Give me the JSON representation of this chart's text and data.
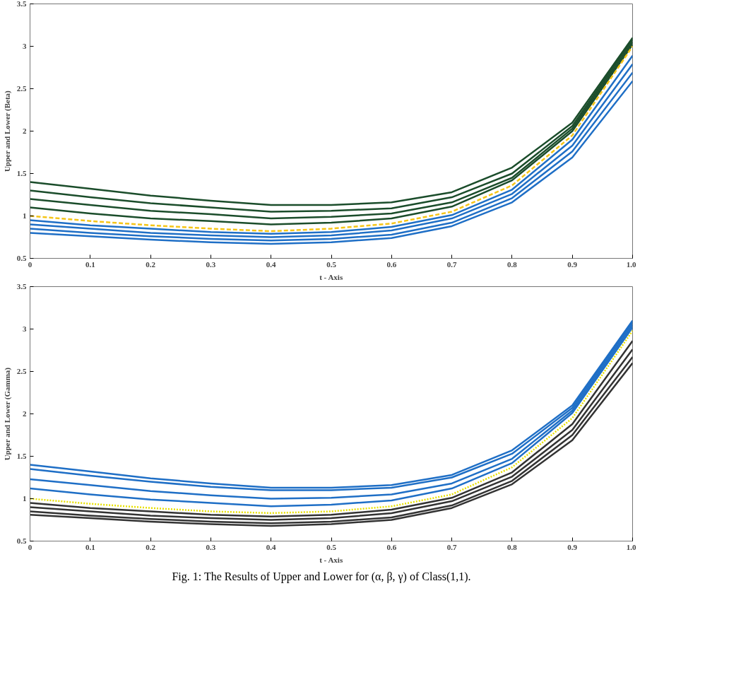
{
  "chart_data": [
    {
      "type": "line",
      "xlabel": "t - Axis",
      "ylabel": "Upper and Lower (Beta)",
      "x": [
        0,
        0.1,
        0.2,
        0.3,
        0.4,
        0.5,
        0.6,
        0.7,
        0.8,
        0.9,
        1.0
      ],
      "xlim": [
        0,
        1.0
      ],
      "ylim": [
        0.5,
        3.5
      ],
      "xticks": [
        0,
        0.1,
        0.2,
        0.3,
        0.4,
        0.5,
        0.6,
        0.7,
        0.8,
        0.9,
        {
          "value": 1.0,
          "label": "1.0"
        }
      ],
      "yticks": [
        0.5,
        1,
        1.5,
        2,
        2.5,
        3,
        3.5
      ],
      "grid": false,
      "series": [
        {
          "color": "#1b4d2b",
          "values": [
            1.4,
            1.32,
            1.24,
            1.18,
            1.13,
            1.13,
            1.16,
            1.28,
            1.57,
            2.1,
            3.1
          ]
        },
        {
          "color": "#1b4d2b",
          "values": [
            1.3,
            1.22,
            1.15,
            1.1,
            1.05,
            1.06,
            1.09,
            1.22,
            1.5,
            2.06,
            3.08
          ]
        },
        {
          "color": "#1b4d2b",
          "values": [
            1.2,
            1.13,
            1.06,
            1.02,
            0.97,
            0.99,
            1.03,
            1.16,
            1.45,
            2.03,
            3.05
          ]
        },
        {
          "color": "#1b4d2b",
          "values": [
            1.1,
            1.03,
            0.97,
            0.94,
            0.9,
            0.92,
            0.97,
            1.11,
            1.42,
            2.0,
            3.02
          ]
        },
        {
          "color": "#f5c518",
          "line_style": "dashed",
          "values": [
            1.0,
            0.94,
            0.89,
            0.85,
            0.82,
            0.85,
            0.91,
            1.05,
            1.36,
            1.95,
            3.0
          ]
        },
        {
          "color": "#1f6fc6",
          "values": [
            0.95,
            0.89,
            0.85,
            0.81,
            0.79,
            0.81,
            0.87,
            1.01,
            1.31,
            1.9,
            2.89
          ]
        },
        {
          "color": "#1f6fc6",
          "values": [
            0.9,
            0.85,
            0.8,
            0.77,
            0.75,
            0.77,
            0.83,
            0.97,
            1.26,
            1.83,
            2.79
          ]
        },
        {
          "color": "#1f6fc6",
          "values": [
            0.85,
            0.8,
            0.76,
            0.73,
            0.71,
            0.73,
            0.78,
            0.92,
            1.21,
            1.76,
            2.69
          ]
        },
        {
          "color": "#1f6fc6",
          "values": [
            0.8,
            0.76,
            0.72,
            0.69,
            0.67,
            0.69,
            0.74,
            0.88,
            1.16,
            1.69,
            2.59
          ]
        }
      ]
    },
    {
      "type": "line",
      "xlabel": "t - Axis",
      "ylabel": "Upper and Lower (Gamma)",
      "x": [
        0,
        0.1,
        0.2,
        0.3,
        0.4,
        0.5,
        0.6,
        0.7,
        0.8,
        0.9,
        1.0
      ],
      "xlim": [
        0,
        1.0
      ],
      "ylim": [
        0.5,
        3.5
      ],
      "xticks": [
        0,
        0.1,
        0.2,
        0.3,
        0.4,
        0.5,
        0.6,
        0.7,
        0.8,
        0.9,
        {
          "value": 1.0,
          "label": "1.0"
        }
      ],
      "yticks": [
        0.5,
        1,
        1.5,
        2,
        2.5,
        3,
        3.5
      ],
      "grid": false,
      "annotations": [
        "Fig. 1: The Results of Upper and Lower for (α, β, γ) of Class(1,1)."
      ],
      "series": [
        {
          "color": "#1f6fc6",
          "values": [
            1.4,
            1.32,
            1.24,
            1.18,
            1.13,
            1.13,
            1.16,
            1.28,
            1.57,
            2.1,
            3.1
          ]
        },
        {
          "color": "#1f6fc6",
          "values": [
            1.35,
            1.27,
            1.2,
            1.14,
            1.1,
            1.1,
            1.13,
            1.25,
            1.53,
            2.07,
            3.08
          ]
        },
        {
          "color": "#1f6fc6",
          "values": [
            1.23,
            1.16,
            1.09,
            1.04,
            1.0,
            1.01,
            1.05,
            1.18,
            1.47,
            2.04,
            3.05
          ]
        },
        {
          "color": "#1f6fc6",
          "values": [
            1.12,
            1.05,
            0.99,
            0.95,
            0.91,
            0.93,
            0.98,
            1.12,
            1.42,
            2.01,
            3.02
          ]
        },
        {
          "color": "#e8e000",
          "line_style": "dotted",
          "values": [
            1.0,
            0.94,
            0.89,
            0.85,
            0.83,
            0.85,
            0.91,
            1.05,
            1.37,
            1.95,
            2.98
          ]
        },
        {
          "color": "#333333",
          "values": [
            0.95,
            0.89,
            0.85,
            0.81,
            0.79,
            0.81,
            0.87,
            1.01,
            1.31,
            1.88,
            2.86
          ]
        },
        {
          "color": "#333333",
          "values": [
            0.9,
            0.85,
            0.8,
            0.77,
            0.75,
            0.77,
            0.83,
            0.97,
            1.26,
            1.81,
            2.76
          ]
        },
        {
          "color": "#333333",
          "values": [
            0.85,
            0.8,
            0.76,
            0.73,
            0.71,
            0.73,
            0.78,
            0.92,
            1.21,
            1.75,
            2.67
          ]
        },
        {
          "color": "#333333",
          "values": [
            0.81,
            0.77,
            0.73,
            0.7,
            0.68,
            0.7,
            0.75,
            0.89,
            1.17,
            1.69,
            2.6
          ]
        }
      ]
    }
  ]
}
